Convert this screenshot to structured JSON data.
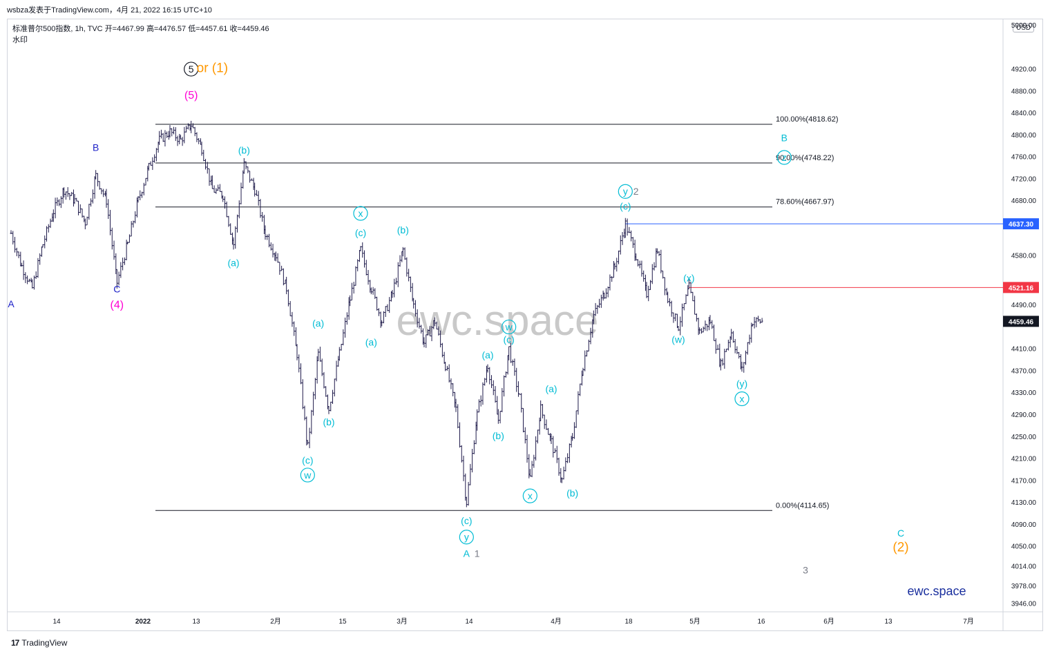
{
  "header": {
    "publisher_line": "wsbza发表于TradingView.com，4月 21, 2022 16:15 UTC+10",
    "symbol_line": "标准普尔500指数, 1h, TVC",
    "open_label": "开=4467.99",
    "high_label": "高=4476.57",
    "low_label": "低=4457.61",
    "close_label": "收=4459.46",
    "watermark_label": "水印",
    "currency": "USD"
  },
  "footer": {
    "logo_text": "17",
    "brand": "TradingView"
  },
  "colors": {
    "candle": "#1e1a4a",
    "cyan": "#00bcd4",
    "blue": "#1e22c8",
    "magenta": "#ff00d4",
    "orange": "#ff9800",
    "gray": "#787b86",
    "red_line": "#f23645",
    "blue_line": "#2962ff",
    "fib_line": "#131722",
    "watermark": "#b7b7b7",
    "ewc_blue": "#1a2f9e"
  },
  "chart_data": {
    "type": "line",
    "title": "标准普尔500指数, 1h, TVC",
    "ylim": [
      3930,
      5010
    ],
    "y_ticks": [
      5000.0,
      4920.0,
      4880.0,
      4840.0,
      4800.0,
      4760.0,
      4720.0,
      4680.0,
      4580.0,
      4490.0,
      4410.0,
      4370.0,
      4330.0,
      4290.0,
      4250.0,
      4210.0,
      4170.0,
      4130.0,
      4090.0,
      4050.0,
      4014.0,
      3978.0,
      3946.0
    ],
    "x_ticks": [
      "14",
      "2022",
      "13",
      "2月",
      "15",
      "3月",
      "14",
      "4月",
      "18",
      "5月",
      "16",
      "6月",
      "13",
      "7月"
    ],
    "price_tags": [
      {
        "value": 4637.3,
        "label": "4637.30",
        "color": "#2962ff"
      },
      {
        "value": 4521.16,
        "label": "4521.16",
        "color": "#f23645"
      },
      {
        "value": 4459.46,
        "label": "4459.46",
        "color": "#131722"
      }
    ],
    "fib_levels": [
      {
        "label": "100.00%(4818.62)",
        "value": 4818.62
      },
      {
        "label": "90.00%(4748.22)",
        "value": 4748.22
      },
      {
        "label": "78.60%(4667.97)",
        "value": 4667.97
      },
      {
        "label": "0.00%(4114.65)",
        "value": 4114.65
      }
    ],
    "price_path": [
      {
        "t": 0,
        "v": 4620
      },
      {
        "t": 1,
        "v": 4560
      },
      {
        "t": 2,
        "v": 4520
      },
      {
        "t": 3,
        "v": 4600
      },
      {
        "t": 4,
        "v": 4660
      },
      {
        "t": 5,
        "v": 4700
      },
      {
        "t": 6,
        "v": 4680
      },
      {
        "t": 7,
        "v": 4640
      },
      {
        "t": 8,
        "v": 4725
      },
      {
        "t": 9,
        "v": 4680
      },
      {
        "t": 10,
        "v": 4530
      },
      {
        "t": 11,
        "v": 4600
      },
      {
        "t": 12,
        "v": 4680
      },
      {
        "t": 13,
        "v": 4740
      },
      {
        "t": 14,
        "v": 4790
      },
      {
        "t": 15,
        "v": 4805
      },
      {
        "t": 16,
        "v": 4790
      },
      {
        "t": 17,
        "v": 4818
      },
      {
        "t": 18,
        "v": 4775
      },
      {
        "t": 19,
        "v": 4700
      },
      {
        "t": 20,
        "v": 4690
      },
      {
        "t": 21,
        "v": 4600
      },
      {
        "t": 22,
        "v": 4745
      },
      {
        "t": 23,
        "v": 4700
      },
      {
        "t": 24,
        "v": 4620
      },
      {
        "t": 25,
        "v": 4580
      },
      {
        "t": 26,
        "v": 4520
      },
      {
        "t": 27,
        "v": 4400
      },
      {
        "t": 28,
        "v": 4230
      },
      {
        "t": 29,
        "v": 4400
      },
      {
        "t": 30,
        "v": 4300
      },
      {
        "t": 31,
        "v": 4400
      },
      {
        "t": 32,
        "v": 4500
      },
      {
        "t": 33,
        "v": 4590
      },
      {
        "t": 34,
        "v": 4520
      },
      {
        "t": 35,
        "v": 4460
      },
      {
        "t": 36,
        "v": 4510
      },
      {
        "t": 37,
        "v": 4590
      },
      {
        "t": 38,
        "v": 4490
      },
      {
        "t": 39,
        "v": 4420
      },
      {
        "t": 40,
        "v": 4460
      },
      {
        "t": 41,
        "v": 4380
      },
      {
        "t": 42,
        "v": 4300
      },
      {
        "t": 43,
        "v": 4130
      },
      {
        "t": 44,
        "v": 4290
      },
      {
        "t": 45,
        "v": 4380
      },
      {
        "t": 46,
        "v": 4280
      },
      {
        "t": 47,
        "v": 4410
      },
      {
        "t": 48,
        "v": 4320
      },
      {
        "t": 49,
        "v": 4170
      },
      {
        "t": 50,
        "v": 4300
      },
      {
        "t": 51,
        "v": 4240
      },
      {
        "t": 52,
        "v": 4170
      },
      {
        "t": 53,
        "v": 4250
      },
      {
        "t": 54,
        "v": 4380
      },
      {
        "t": 55,
        "v": 4470
      },
      {
        "t": 56,
        "v": 4510
      },
      {
        "t": 57,
        "v": 4560
      },
      {
        "t": 58,
        "v": 4637
      },
      {
        "t": 59,
        "v": 4580
      },
      {
        "t": 60,
        "v": 4510
      },
      {
        "t": 61,
        "v": 4590
      },
      {
        "t": 62,
        "v": 4500
      },
      {
        "t": 63,
        "v": 4450
      },
      {
        "t": 64,
        "v": 4521
      },
      {
        "t": 65,
        "v": 4440
      },
      {
        "t": 66,
        "v": 4460
      },
      {
        "t": 67,
        "v": 4380
      },
      {
        "t": 68,
        "v": 4440
      },
      {
        "t": 69,
        "v": 4370
      },
      {
        "t": 70,
        "v": 4460
      },
      {
        "t": 71,
        "v": 4459.46
      }
    ],
    "wave_labels": [
      {
        "text": "A",
        "color": "#1e22c8",
        "t": 0,
        "v": 4485,
        "circle": false
      },
      {
        "text": "B",
        "color": "#1e22c8",
        "t": 8,
        "v": 4770,
        "circle": false
      },
      {
        "text": "C",
        "color": "#1e22c8",
        "t": 10,
        "v": 4512,
        "circle": false
      },
      {
        "text": "(4)",
        "color": "#ff00d4",
        "t": 10,
        "v": 4483,
        "circle": false
      },
      {
        "text": "(5)",
        "color": "#ff00d4",
        "t": 17,
        "v": 4865,
        "circle": false
      },
      {
        "text": "5",
        "color": "#131722",
        "t": 17,
        "v": 4913,
        "circle": true
      },
      {
        "text": "or (1)",
        "color": "#ff9800",
        "t": 19,
        "v": 4914,
        "circle": false
      },
      {
        "text": "(b)",
        "color": "#00bcd4",
        "t": 22,
        "v": 4765,
        "circle": false
      },
      {
        "text": "(a)",
        "color": "#00bcd4",
        "t": 21,
        "v": 4560,
        "circle": false
      },
      {
        "text": "x",
        "color": "#00bcd4",
        "t": 33,
        "v": 4650,
        "circle": true
      },
      {
        "text": "(c)",
        "color": "#00bcd4",
        "t": 33,
        "v": 4615,
        "circle": false
      },
      {
        "text": "(b)",
        "color": "#00bcd4",
        "t": 37,
        "v": 4620,
        "circle": false
      },
      {
        "text": "(a)",
        "color": "#00bcd4",
        "t": 29,
        "v": 4450,
        "circle": false
      },
      {
        "text": "(a)",
        "color": "#00bcd4",
        "t": 34,
        "v": 4415,
        "circle": false
      },
      {
        "text": "(b)",
        "color": "#00bcd4",
        "t": 30,
        "v": 4270,
        "circle": false
      },
      {
        "text": "(c)",
        "color": "#00bcd4",
        "t": 28,
        "v": 4200,
        "circle": false
      },
      {
        "text": "w",
        "color": "#00bcd4",
        "t": 28,
        "v": 4173,
        "circle": true
      },
      {
        "text": "w",
        "color": "#00bcd4",
        "t": 47,
        "v": 4443,
        "circle": true
      },
      {
        "text": "(c)",
        "color": "#00bcd4",
        "t": 47,
        "v": 4420,
        "circle": false
      },
      {
        "text": "(a)",
        "color": "#00bcd4",
        "t": 45,
        "v": 4392,
        "circle": false
      },
      {
        "text": "(b)",
        "color": "#00bcd4",
        "t": 46,
        "v": 4245,
        "circle": false
      },
      {
        "text": "(c)",
        "color": "#00bcd4",
        "t": 43,
        "v": 4090,
        "circle": false
      },
      {
        "text": "y",
        "color": "#00bcd4",
        "t": 43,
        "v": 4060,
        "circle": true
      },
      {
        "text": "A",
        "color": "#00bcd4",
        "t": 43,
        "v": 4030,
        "circle": false
      },
      {
        "text": "1",
        "color": "#787b86",
        "t": 44,
        "v": 4030,
        "circle": false
      },
      {
        "text": "(a)",
        "color": "#00bcd4",
        "t": 51,
        "v": 4330,
        "circle": false
      },
      {
        "text": "x",
        "color": "#00bcd4",
        "t": 49,
        "v": 4135,
        "circle": true
      },
      {
        "text": "(b)",
        "color": "#00bcd4",
        "t": 53,
        "v": 4140,
        "circle": false
      },
      {
        "text": "y",
        "color": "#00bcd4",
        "t": 58,
        "v": 4690,
        "circle": true
      },
      {
        "text": "2",
        "color": "#787b86",
        "t": 59,
        "v": 4690,
        "circle": false
      },
      {
        "text": "(c)",
        "color": "#00bcd4",
        "t": 58,
        "v": 4663,
        "circle": false
      },
      {
        "text": "(x)",
        "color": "#00bcd4",
        "t": 64,
        "v": 4532,
        "circle": false
      },
      {
        "text": "(w)",
        "color": "#00bcd4",
        "t": 63,
        "v": 4420,
        "circle": false
      },
      {
        "text": "(y)",
        "color": "#00bcd4",
        "t": 69,
        "v": 4340,
        "circle": false
      },
      {
        "text": "x",
        "color": "#00bcd4",
        "t": 69,
        "v": 4312,
        "circle": true
      },
      {
        "text": "B",
        "color": "#00bcd4",
        "t": 73,
        "v": 4788,
        "circle": false
      },
      {
        "text": "z",
        "color": "#00bcd4",
        "t": 73,
        "v": 4752,
        "circle": true
      },
      {
        "text": "3",
        "color": "#787b86",
        "t": 75,
        "v": 4000,
        "circle": false
      },
      {
        "text": "C",
        "color": "#00bcd4",
        "t": 84,
        "v": 4067,
        "circle": false
      },
      {
        "text": "(2)",
        "color": "#ff9800",
        "t": 84,
        "v": 4040,
        "circle": false
      }
    ],
    "watermarks": [
      {
        "text": "ewc.space",
        "size": "large"
      },
      {
        "text": "ewc.space",
        "size": "small"
      }
    ]
  }
}
